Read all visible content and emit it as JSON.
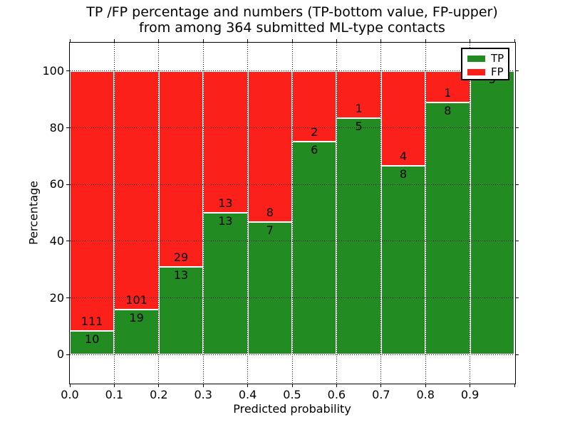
{
  "chart_data": {
    "type": "bar",
    "variant": "stacked-percentage-histogram",
    "title": "TP /FP percentage and numbers (TP-bottom value, FP-upper)\nfrom among 364 submitted ML-type contacts",
    "title_lines": [
      "TP /FP percentage and numbers (TP-bottom value, FP-upper)",
      "from among 364 submitted ML-type contacts"
    ],
    "xlabel": "Predicted probability",
    "ylabel": "Percentage",
    "total_contacts": 364,
    "xlim": [
      0.0,
      1.0
    ],
    "ylim": [
      -10,
      110
    ],
    "bin_width": 0.1,
    "grid": true,
    "grid_style": "dotted",
    "x_tick_labels": [
      "0.0",
      "0.1",
      "0.2",
      "0.3",
      "0.4",
      "0.5",
      "0.6",
      "0.7",
      "0.8",
      "0.9"
    ],
    "y_tick_values": [
      0,
      20,
      40,
      60,
      80,
      100
    ],
    "y_tick_labels": [
      "0",
      "20",
      "40",
      "60",
      "80",
      "100"
    ],
    "categories": [
      "0.0-0.1",
      "0.1-0.2",
      "0.2-0.3",
      "0.3-0.4",
      "0.4-0.5",
      "0.5-0.6",
      "0.6-0.7",
      "0.7-0.8",
      "0.8-0.9",
      "0.9-1.0"
    ],
    "legend": [
      {
        "label": "TP",
        "color": "#228b22"
      },
      {
        "label": "FP",
        "color": "#fc201a"
      }
    ],
    "legend_position": "upper right",
    "series": [
      {
        "name": "TP",
        "stack_position": "bottom",
        "color": "#228b22",
        "counts": [
          10,
          19,
          13,
          13,
          7,
          6,
          5,
          8,
          8,
          5
        ]
      },
      {
        "name": "FP",
        "stack_position": "top",
        "color": "#fc201a",
        "counts": [
          111,
          101,
          29,
          13,
          8,
          2,
          1,
          4,
          1,
          0
        ]
      }
    ],
    "tp_percent_heights": [
      8.26,
      15.83,
      30.95,
      50.0,
      46.67,
      75.0,
      83.33,
      66.67,
      88.89,
      100.0
    ],
    "colors": {
      "tp_green": "#228b22",
      "fp_red": "#fc201a",
      "grid": "#000000",
      "background": "#ffffff"
    }
  }
}
